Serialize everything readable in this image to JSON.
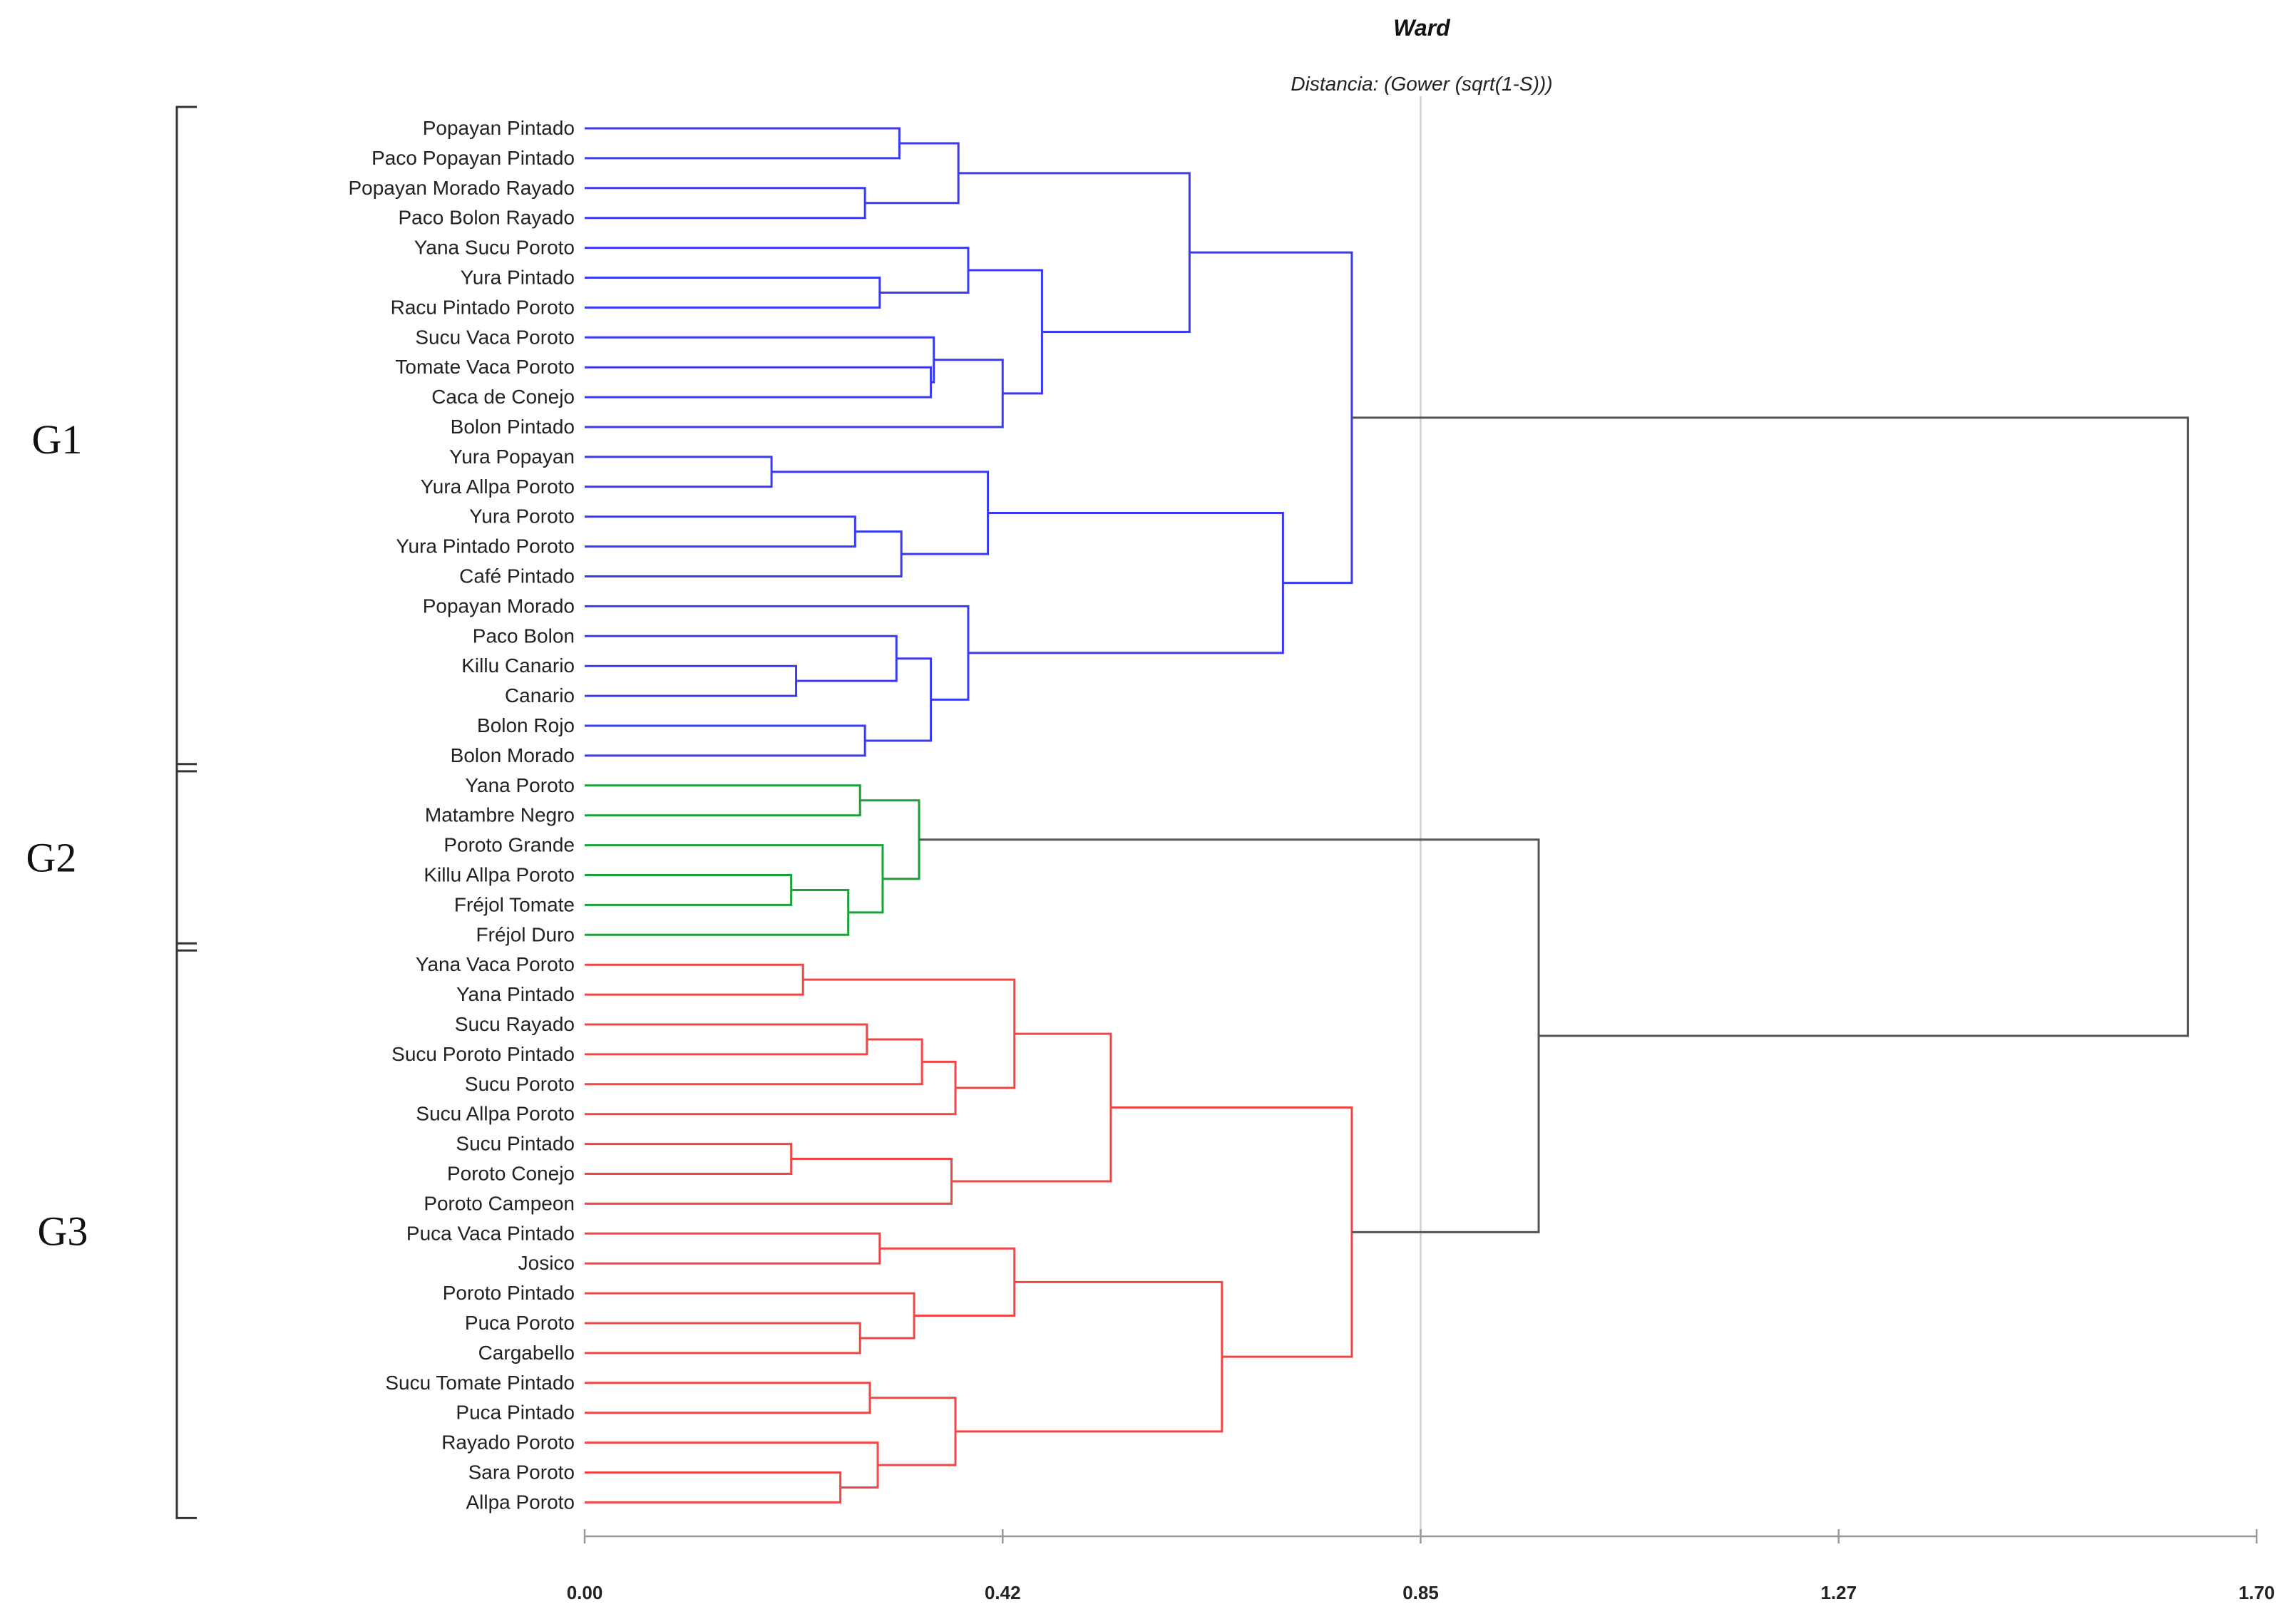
{
  "chart_data": {
    "type": "dendrogram",
    "title": "Ward",
    "subtitle": "Distancia: (Gower (sqrt(1-S)))",
    "xlim": [
      0,
      1.7
    ],
    "ticks": [
      {
        "value": 0.0,
        "label": "0.00"
      },
      {
        "value": 0.425,
        "label": "0.42"
      },
      {
        "value": 0.85,
        "label": "0.85"
      },
      {
        "value": 1.275,
        "label": "1.27"
      },
      {
        "value": 1.7,
        "label": "1.70"
      }
    ],
    "reference_line": 0.85,
    "colors": {
      "G1": "#3a3af0",
      "G2": "#1aa13a",
      "G3": "#f04646",
      "root": "#555555",
      "axis": "#999999",
      "ref": "#cfcfcf",
      "bracket": "#333333"
    },
    "leaves": [
      "Popayan Pintado",
      "Paco Popayan Pintado",
      "Popayan Morado Rayado",
      "Paco Bolon Rayado",
      "Yana Sucu Poroto",
      "Yura Pintado",
      "Racu Pintado Poroto",
      "Sucu Vaca Poroto",
      "Tomate Vaca Poroto",
      "Caca de Conejo",
      "Bolon Pintado",
      "Yura Popayan",
      "Yura Allpa Poroto",
      "Yura Poroto",
      "Yura Pintado Poroto",
      "Café Pintado",
      "Popayan Morado",
      "Paco Bolon",
      "Killu Canario",
      "Canario",
      "Bolon Rojo",
      "Bolon Morado",
      "Yana Poroto",
      "Matambre Negro",
      "Poroto Grande",
      "Killu Allpa Poroto",
      "Fréjol Tomate",
      "Fréjol Duro",
      "Yana Vaca Poroto",
      "Yana Pintado",
      "Sucu Rayado",
      "Sucu Poroto Pintado",
      "Sucu Poroto",
      "Sucu Allpa Poroto",
      "Sucu Pintado",
      "Poroto Conejo",
      "Poroto Campeon",
      "Puca Vaca Pintado",
      "Josico",
      "Poroto Pintado",
      "Puca Poroto",
      "Cargabello",
      "Sucu Tomate Pintado",
      "Puca Pintado",
      "Rayado Poroto",
      "Sara Poroto",
      "Allpa Poroto"
    ],
    "merges": [
      {
        "id": "a1",
        "a": 0,
        "b": 1,
        "h": 0.32,
        "g": "G1"
      },
      {
        "id": "a2",
        "a": 2,
        "b": 3,
        "h": 0.285,
        "g": "G1"
      },
      {
        "id": "a3",
        "a": "a1",
        "b": "a2",
        "h": 0.38,
        "g": "G1"
      },
      {
        "id": "b1",
        "a": 5,
        "b": 6,
        "h": 0.3,
        "g": "G1"
      },
      {
        "id": "b2",
        "a": 4,
        "b": "b1",
        "h": 0.39,
        "g": "G1"
      },
      {
        "id": "b3",
        "a": 8,
        "b": 9,
        "h": 0.352,
        "g": "G1"
      },
      {
        "id": "b4",
        "a": 7,
        "b": "b3",
        "h": 0.355,
        "g": "G1"
      },
      {
        "id": "b5",
        "a": "b4",
        "b": 10,
        "h": 0.425,
        "g": "G1"
      },
      {
        "id": "b6",
        "a": "b2",
        "b": "b5",
        "h": 0.465,
        "g": "G1"
      },
      {
        "id": "c1",
        "a": "a3",
        "b": "b6",
        "h": 0.615,
        "g": "G1"
      },
      {
        "id": "d1",
        "a": 11,
        "b": 12,
        "h": 0.19,
        "g": "G1"
      },
      {
        "id": "d2",
        "a": 13,
        "b": 14,
        "h": 0.275,
        "g": "G1"
      },
      {
        "id": "d3",
        "a": "d2",
        "b": 15,
        "h": 0.322,
        "g": "G1"
      },
      {
        "id": "d4",
        "a": "d1",
        "b": "d3",
        "h": 0.41,
        "g": "G1"
      },
      {
        "id": "e1",
        "a": 18,
        "b": 19,
        "h": 0.215,
        "g": "G1"
      },
      {
        "id": "e2",
        "a": 17,
        "b": "e1",
        "h": 0.317,
        "g": "G1"
      },
      {
        "id": "e3",
        "a": 20,
        "b": 21,
        "h": 0.285,
        "g": "G1"
      },
      {
        "id": "e4",
        "a": "e2",
        "b": "e3",
        "h": 0.352,
        "g": "G1"
      },
      {
        "id": "e5",
        "a": 16,
        "b": "e4",
        "h": 0.39,
        "g": "G1"
      },
      {
        "id": "f1",
        "a": "d4",
        "b": "e5",
        "h": 0.71,
        "g": "G1"
      },
      {
        "id": "G1",
        "a": "c1",
        "b": "f1",
        "h": 0.78,
        "g": "G1"
      },
      {
        "id": "g1",
        "a": 22,
        "b": 23,
        "h": 0.28,
        "g": "G2"
      },
      {
        "id": "g2",
        "a": 25,
        "b": 26,
        "h": 0.21,
        "g": "G2"
      },
      {
        "id": "g3",
        "a": "g2",
        "b": 27,
        "h": 0.268,
        "g": "G2"
      },
      {
        "id": "g4",
        "a": 24,
        "b": "g3",
        "h": 0.303,
        "g": "G2"
      },
      {
        "id": "G2",
        "a": "g1",
        "b": "g4",
        "h": 0.34,
        "g": "G2"
      },
      {
        "id": "h1",
        "a": 28,
        "b": 29,
        "h": 0.222,
        "g": "G3"
      },
      {
        "id": "h2",
        "a": 30,
        "b": 31,
        "h": 0.287,
        "g": "G3"
      },
      {
        "id": "h3",
        "a": "h2",
        "b": 32,
        "h": 0.343,
        "g": "G3"
      },
      {
        "id": "h4",
        "a": "h3",
        "b": 33,
        "h": 0.377,
        "g": "G3"
      },
      {
        "id": "h5",
        "a": "h1",
        "b": "h4",
        "h": 0.437,
        "g": "G3"
      },
      {
        "id": "h6",
        "a": 34,
        "b": 35,
        "h": 0.21,
        "g": "G3"
      },
      {
        "id": "h7",
        "a": "h6",
        "b": 36,
        "h": 0.373,
        "g": "G3"
      },
      {
        "id": "h8",
        "a": "h5",
        "b": "h7",
        "h": 0.535,
        "g": "G3"
      },
      {
        "id": "i1",
        "a": 37,
        "b": 38,
        "h": 0.3,
        "g": "G3"
      },
      {
        "id": "i2",
        "a": 40,
        "b": 41,
        "h": 0.28,
        "g": "G3"
      },
      {
        "id": "i3",
        "a": 39,
        "b": "i2",
        "h": 0.335,
        "g": "G3"
      },
      {
        "id": "i4",
        "a": "i1",
        "b": "i3",
        "h": 0.437,
        "g": "G3"
      },
      {
        "id": "i5",
        "a": 42,
        "b": 43,
        "h": 0.29,
        "g": "G3"
      },
      {
        "id": "i6",
        "a": 45,
        "b": 46,
        "h": 0.26,
        "g": "G3"
      },
      {
        "id": "i7",
        "a": 44,
        "b": "i6",
        "h": 0.298,
        "g": "G3"
      },
      {
        "id": "i8",
        "a": "i5",
        "b": "i7",
        "h": 0.377,
        "g": "G3"
      },
      {
        "id": "i9",
        "a": "i4",
        "b": "i8",
        "h": 0.648,
        "g": "G3"
      },
      {
        "id": "G3",
        "a": "h8",
        "b": "i9",
        "h": 0.78,
        "g": "G3"
      },
      {
        "id": "G23",
        "a": "G2",
        "b": "G3",
        "h": 0.97,
        "g": "root"
      },
      {
        "id": "root",
        "a": "G1",
        "b": "G23",
        "h": 1.63,
        "g": "root"
      }
    ],
    "groups": [
      {
        "name": "G1",
        "first_leaf": 0,
        "last_leaf": 21
      },
      {
        "name": "G2",
        "first_leaf": 22,
        "last_leaf": 27
      },
      {
        "name": "G3",
        "first_leaf": 28,
        "last_leaf": 46
      }
    ]
  }
}
